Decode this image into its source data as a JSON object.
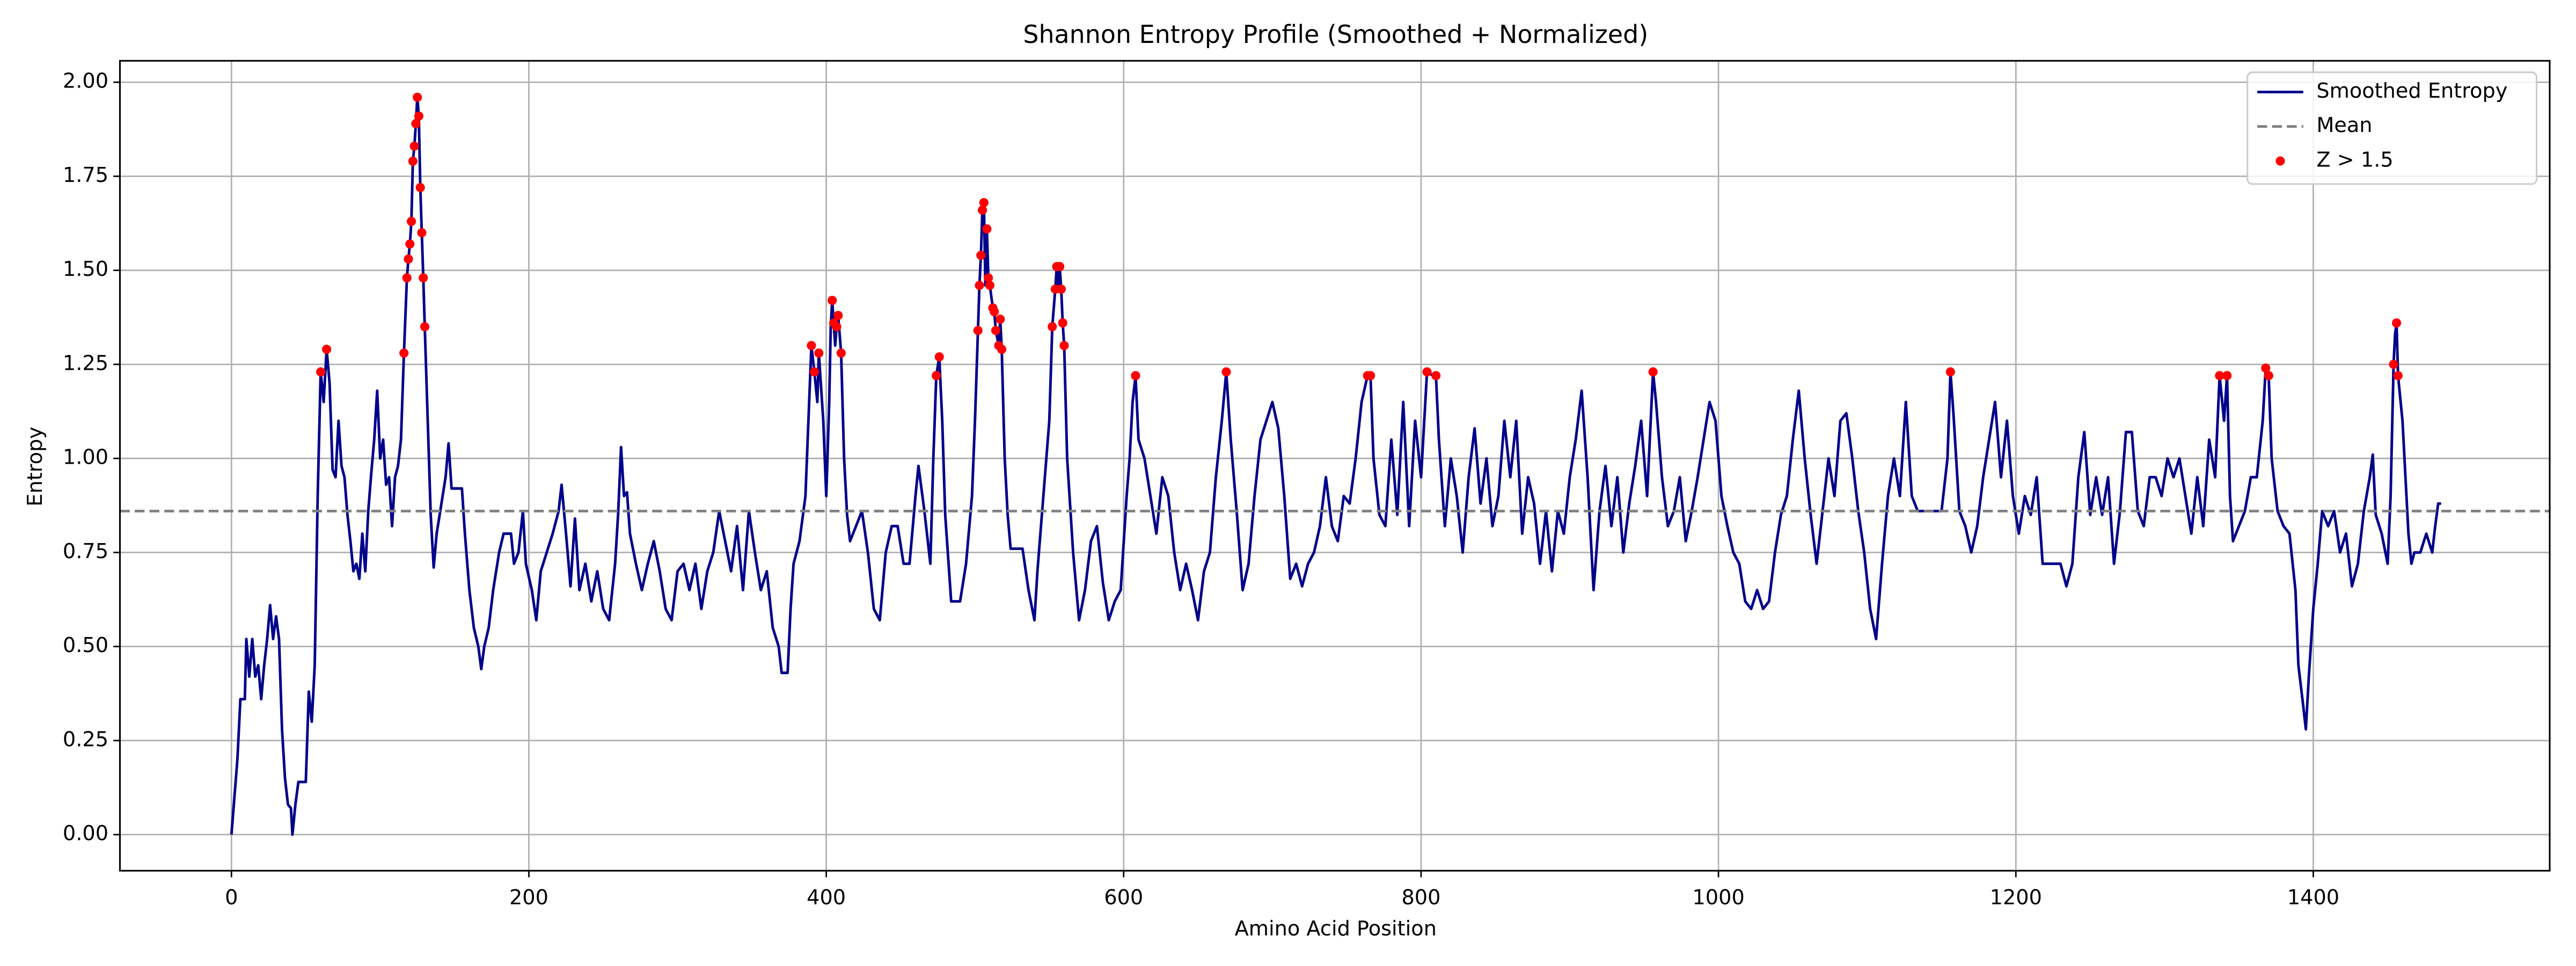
{
  "chart_data": {
    "type": "line",
    "title": "Shannon Entropy Profile (Smoothed + Normalized)",
    "x_label": "Amino Acid Position",
    "y_label": "Entropy",
    "xlim": [
      -75,
      1559
    ],
    "ylim": [
      -0.096,
      2.057
    ],
    "xticks": [
      0,
      200,
      400,
      600,
      800,
      1000,
      1200,
      1400
    ],
    "yticks": [
      {
        "value": 0,
        "label": "0.00"
      },
      {
        "value": 0.25,
        "label": "0.25"
      },
      {
        "value": 0.5,
        "label": "0.50"
      },
      {
        "value": 0.75,
        "label": "0.75"
      },
      {
        "value": 1,
        "label": "1.00"
      },
      {
        "value": 1.25,
        "label": "1.25"
      },
      {
        "value": 1.5,
        "label": "1.50"
      },
      {
        "value": 1.75,
        "label": "1.75"
      },
      {
        "value": 2,
        "label": "2.00"
      }
    ],
    "grid": true,
    "legend": "upper right",
    "series": [
      {
        "name": "Smoothed Entropy",
        "color": "#00008b",
        "x": [
          0,
          2,
          4,
          6,
          9,
          10,
          12,
          14,
          16,
          18,
          20,
          22,
          24,
          26,
          28,
          30,
          32,
          34,
          36,
          38,
          40,
          41,
          43,
          45,
          50,
          52,
          54,
          56,
          58,
          60,
          62,
          64,
          66,
          68,
          70,
          72,
          74,
          76,
          78,
          80,
          82,
          84,
          86,
          88,
          90,
          92,
          94,
          96,
          98,
          100,
          102,
          104,
          106,
          108,
          110,
          112,
          114,
          116,
          118,
          119,
          120,
          121,
          122,
          123,
          124,
          125,
          126,
          127,
          128,
          129,
          130,
          132,
          134,
          136,
          138,
          140,
          142,
          144,
          146,
          148,
          155,
          157,
          160,
          163,
          166,
          168,
          170,
          173,
          176,
          180,
          183,
          188,
          190,
          193,
          196,
          198,
          202,
          205,
          208,
          212,
          216,
          220,
          222,
          225,
          228,
          231,
          234,
          238,
          242,
          246,
          250,
          254,
          258,
          260,
          262,
          264,
          266,
          268,
          272,
          276,
          280,
          284,
          288,
          292,
          296,
          300,
          304,
          308,
          312,
          316,
          320,
          324,
          328,
          332,
          336,
          340,
          344,
          348,
          352,
          356,
          360,
          364,
          368,
          370,
          374,
          376,
          378,
          382,
          386,
          388,
          390,
          392,
          394,
          395,
          396,
          398,
          400,
          402,
          403,
          404,
          405,
          406,
          407,
          408,
          409,
          410,
          412,
          414,
          416,
          420,
          424,
          428,
          432,
          436,
          440,
          444,
          448,
          452,
          456,
          460,
          462,
          466,
          470,
          472,
          474,
          476,
          478,
          480,
          484,
          490,
          494,
          498,
          500,
          502,
          503,
          504,
          505,
          506,
          507,
          508,
          509,
          510,
          512,
          513,
          514,
          516,
          517,
          518,
          520,
          522,
          524,
          528,
          532,
          536,
          540,
          542,
          546,
          550,
          552,
          554,
          555,
          556,
          557,
          558,
          559,
          560,
          562,
          566,
          570,
          574,
          578,
          582,
          586,
          590,
          594,
          598,
          602,
          604,
          606,
          608,
          610,
          614,
          618,
          622,
          626,
          630,
          634,
          638,
          642,
          646,
          650,
          654,
          658,
          662,
          666,
          669,
          672,
          676,
          680,
          684,
          688,
          692,
          696,
          700,
          704,
          708,
          712,
          716,
          720,
          724,
          728,
          732,
          736,
          740,
          744,
          748,
          752,
          756,
          760,
          764,
          766,
          768,
          772,
          776,
          780,
          784,
          788,
          792,
          796,
          800,
          804,
          808,
          810,
          812,
          816,
          820,
          824,
          828,
          832,
          836,
          840,
          844,
          848,
          852,
          856,
          860,
          864,
          868,
          872,
          876,
          880,
          884,
          888,
          892,
          896,
          900,
          904,
          908,
          912,
          916,
          920,
          924,
          928,
          932,
          936,
          940,
          944,
          948,
          952,
          956,
          958,
          962,
          966,
          970,
          974,
          978,
          982,
          986,
          990,
          994,
          998,
          1002,
          1006,
          1010,
          1014,
          1018,
          1022,
          1026,
          1030,
          1034,
          1038,
          1042,
          1046,
          1050,
          1054,
          1058,
          1062,
          1066,
          1070,
          1074,
          1078,
          1082,
          1086,
          1090,
          1094,
          1098,
          1102,
          1106,
          1110,
          1114,
          1118,
          1122,
          1126,
          1130,
          1134,
          1138,
          1142,
          1146,
          1150,
          1154,
          1156,
          1158,
          1162,
          1166,
          1170,
          1174,
          1178,
          1182,
          1186,
          1190,
          1194,
          1198,
          1202,
          1206,
          1210,
          1214,
          1218,
          1222,
          1226,
          1230,
          1234,
          1238,
          1242,
          1246,
          1250,
          1254,
          1258,
          1262,
          1266,
          1270,
          1274,
          1278,
          1282,
          1286,
          1290,
          1294,
          1298,
          1302,
          1306,
          1310,
          1314,
          1318,
          1322,
          1326,
          1330,
          1334,
          1337,
          1340,
          1342,
          1344,
          1346,
          1350,
          1354,
          1358,
          1362,
          1366,
          1368,
          1370,
          1372,
          1376,
          1380,
          1384,
          1388,
          1390,
          1393,
          1395,
          1397,
          1400,
          1403,
          1406,
          1410,
          1414,
          1418,
          1422,
          1426,
          1430,
          1434,
          1438,
          1440,
          1442,
          1446,
          1450,
          1452,
          1454,
          1455,
          1456,
          1457,
          1460,
          1462,
          1464,
          1466,
          1468,
          1472,
          1476,
          1480,
          1482,
          1484,
          1486
        ],
        "values": [
          0,
          0.1,
          0.2,
          0.36,
          0.36,
          0.52,
          0.42,
          0.52,
          0.42,
          0.45,
          0.36,
          0.45,
          0.52,
          0.61,
          0.52,
          0.58,
          0.52,
          0.28,
          0.15,
          0.08,
          0.07,
          0,
          0.08,
          0.14,
          0.14,
          0.38,
          0.3,
          0.45,
          0.9,
          1.23,
          1.15,
          1.29,
          1.2,
          0.97,
          0.95,
          1.1,
          0.98,
          0.95,
          0.85,
          0.78,
          0.7,
          0.72,
          0.68,
          0.8,
          0.7,
          0.86,
          0.96,
          1.05,
          1.18,
          1.0,
          1.05,
          0.93,
          0.95,
          0.82,
          0.95,
          0.98,
          1.05,
          1.28,
          1.48,
          1.53,
          1.57,
          1.63,
          1.79,
          1.83,
          1.89,
          1.96,
          1.91,
          1.72,
          1.6,
          1.48,
          1.35,
          1.1,
          0.85,
          0.71,
          0.8,
          0.85,
          0.9,
          0.95,
          1.04,
          0.92,
          0.92,
          0.8,
          0.65,
          0.55,
          0.5,
          0.44,
          0.5,
          0.55,
          0.65,
          0.75,
          0.8,
          0.8,
          0.72,
          0.75,
          0.86,
          0.72,
          0.65,
          0.57,
          0.7,
          0.75,
          0.8,
          0.86,
          0.93,
          0.8,
          0.66,
          0.84,
          0.65,
          0.72,
          0.62,
          0.7,
          0.6,
          0.57,
          0.72,
          0.85,
          1.03,
          0.9,
          0.91,
          0.8,
          0.72,
          0.65,
          0.72,
          0.78,
          0.7,
          0.6,
          0.57,
          0.7,
          0.72,
          0.65,
          0.72,
          0.6,
          0.7,
          0.75,
          0.86,
          0.78,
          0.7,
          0.82,
          0.65,
          0.86,
          0.75,
          0.65,
          0.7,
          0.55,
          0.5,
          0.43,
          0.43,
          0.6,
          0.72,
          0.78,
          0.9,
          1.1,
          1.3,
          1.23,
          1.15,
          1.28,
          1.22,
          1.1,
          0.9,
          1.15,
          1.35,
          1.42,
          1.36,
          1.3,
          1.35,
          1.38,
          1.33,
          1.28,
          1.0,
          0.85,
          0.78,
          0.82,
          0.86,
          0.75,
          0.6,
          0.57,
          0.75,
          0.82,
          0.82,
          0.72,
          0.72,
          0.9,
          0.98,
          0.86,
          0.72,
          1.0,
          1.22,
          1.27,
          1.1,
          0.85,
          0.62,
          0.62,
          0.72,
          0.9,
          1.1,
          1.34,
          1.46,
          1.54,
          1.66,
          1.68,
          1.46,
          1.61,
          1.48,
          1.46,
          1.4,
          1.39,
          1.34,
          1.3,
          1.37,
          1.29,
          1.0,
          0.85,
          0.76,
          0.76,
          0.76,
          0.65,
          0.57,
          0.7,
          0.9,
          1.1,
          1.35,
          1.45,
          1.51,
          1.45,
          1.51,
          1.45,
          1.36,
          1.3,
          1.0,
          0.75,
          0.57,
          0.65,
          0.78,
          0.82,
          0.67,
          0.57,
          0.62,
          0.65,
          0.9,
          1.0,
          1.15,
          1.22,
          1.05,
          1.0,
          0.9,
          0.8,
          0.95,
          0.9,
          0.75,
          0.65,
          0.72,
          0.65,
          0.57,
          0.7,
          0.75,
          0.95,
          1.1,
          1.23,
          1.05,
          0.86,
          0.65,
          0.72,
          0.9,
          1.05,
          1.1,
          1.15,
          1.08,
          0.9,
          0.68,
          0.72,
          0.66,
          0.72,
          0.75,
          0.82,
          0.95,
          0.82,
          0.78,
          0.9,
          0.88,
          1.0,
          1.15,
          1.22,
          1.22,
          1.0,
          0.85,
          0.82,
          1.05,
          0.85,
          1.15,
          0.82,
          1.1,
          0.95,
          1.23,
          1.22,
          1.22,
          1.05,
          0.82,
          1.0,
          0.9,
          0.75,
          0.95,
          1.08,
          0.88,
          1.0,
          0.82,
          0.9,
          1.1,
          0.95,
          1.1,
          0.8,
          0.95,
          0.88,
          0.72,
          0.86,
          0.7,
          0.86,
          0.8,
          0.95,
          1.05,
          1.18,
          0.95,
          0.65,
          0.86,
          0.98,
          0.82,
          0.95,
          0.75,
          0.88,
          0.98,
          1.1,
          0.9,
          1.23,
          1.15,
          0.95,
          0.82,
          0.86,
          0.95,
          0.78,
          0.86,
          0.95,
          1.05,
          1.15,
          1.1,
          0.9,
          0.82,
          0.75,
          0.72,
          0.62,
          0.6,
          0.65,
          0.6,
          0.62,
          0.75,
          0.85,
          0.9,
          1.05,
          1.18,
          1.0,
          0.85,
          0.72,
          0.86,
          1.0,
          0.9,
          1.1,
          1.12,
          1.0,
          0.86,
          0.75,
          0.6,
          0.52,
          0.72,
          0.9,
          1.0,
          0.9,
          1.15,
          0.9,
          0.86,
          0.86,
          0.86,
          0.86,
          0.86,
          1.0,
          1.23,
          1.12,
          0.86,
          0.82,
          0.75,
          0.82,
          0.95,
          1.05,
          1.15,
          0.95,
          1.1,
          0.9,
          0.8,
          0.9,
          0.85,
          0.95,
          0.72,
          0.72,
          0.72,
          0.72,
          0.66,
          0.72,
          0.95,
          1.07,
          0.85,
          0.95,
          0.85,
          0.95,
          0.72,
          0.86,
          1.07,
          1.07,
          0.86,
          0.82,
          0.95,
          0.95,
          0.9,
          1.0,
          0.95,
          1.0,
          0.9,
          0.8,
          0.95,
          0.82,
          1.05,
          0.95,
          1.22,
          1.1,
          1.22,
          0.9,
          0.78,
          0.82,
          0.86,
          0.95,
          0.95,
          1.1,
          1.24,
          1.22,
          1.0,
          0.86,
          0.82,
          0.8,
          0.65,
          0.45,
          0.35,
          0.28,
          0.42,
          0.6,
          0.72,
          0.86,
          0.82,
          0.86,
          0.75,
          0.8,
          0.66,
          0.72,
          0.86,
          0.95,
          1.01,
          0.85,
          0.8,
          0.72,
          0.9,
          1.25,
          1.33,
          1.36,
          1.22,
          1.1,
          0.95,
          0.8,
          0.72,
          0.75,
          0.75,
          0.8,
          0.75,
          0.82,
          0.88,
          0.88
        ]
      },
      {
        "name": "Mean",
        "color": "#808080",
        "value": 0.86,
        "linestyle": "dashed"
      },
      {
        "name": "Z > 1.5",
        "type": "scatter",
        "color": "#ff0000",
        "x": [
          60,
          64,
          116,
          118,
          119,
          120,
          121,
          122,
          123,
          124,
          125,
          126,
          127,
          128,
          129,
          130,
          390,
          392,
          395,
          404,
          405,
          407,
          408,
          410,
          474,
          476,
          502,
          503,
          504,
          505,
          506,
          508,
          509,
          510,
          512,
          513,
          514,
          516,
          517,
          518,
          552,
          554,
          555,
          557,
          558,
          559,
          560,
          608,
          669,
          764,
          766,
          804,
          810,
          956,
          1156,
          1337,
          1342,
          1368,
          1370,
          1454,
          1456,
          1457
        ],
        "values": [
          1.23,
          1.29,
          1.28,
          1.48,
          1.53,
          1.57,
          1.63,
          1.79,
          1.83,
          1.89,
          1.96,
          1.91,
          1.72,
          1.6,
          1.48,
          1.35,
          1.3,
          1.23,
          1.28,
          1.42,
          1.36,
          1.35,
          1.38,
          1.28,
          1.22,
          1.27,
          1.34,
          1.46,
          1.54,
          1.66,
          1.68,
          1.61,
          1.48,
          1.46,
          1.4,
          1.39,
          1.34,
          1.3,
          1.37,
          1.29,
          1.35,
          1.45,
          1.51,
          1.51,
          1.45,
          1.36,
          1.3,
          1.22,
          1.23,
          1.22,
          1.22,
          1.23,
          1.22,
          1.23,
          1.23,
          1.22,
          1.22,
          1.24,
          1.22,
          1.25,
          1.36,
          1.22
        ]
      }
    ]
  }
}
